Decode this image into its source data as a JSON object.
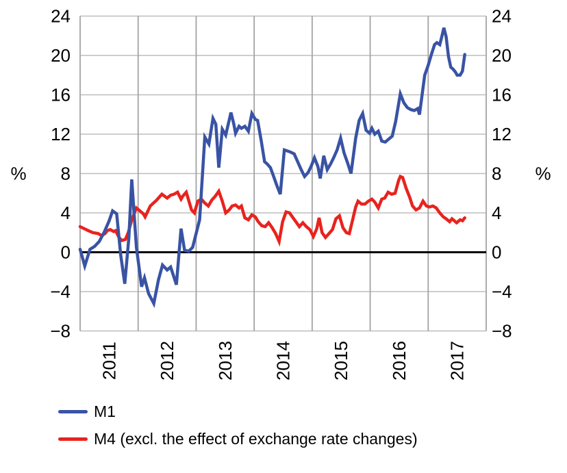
{
  "page": {
    "background": "#ffffff"
  },
  "chart_data": {
    "type": "line",
    "title": "",
    "grid": true,
    "grid_color_vertical": "#a3a3a3",
    "grid_color_horizontal": "#bdbdbd",
    "zero_line_color": "#000000",
    "y_axis": {
      "unit_left": "%",
      "unit_right": "%",
      "ticks": [
        24,
        20,
        16,
        12,
        8,
        4,
        0,
        -4,
        -8
      ],
      "range": [
        -8,
        24
      ]
    },
    "x_axis": {
      "range": [
        2011,
        2018
      ],
      "gridline_years": [
        2011,
        2012,
        2013,
        2014,
        2015,
        2016,
        2017,
        2018
      ],
      "labels": [
        "2011",
        "2012",
        "2013",
        "2014",
        "2015",
        "2016",
        "2017"
      ],
      "label_centers": [
        2011.5,
        2012.5,
        2013.5,
        2014.5,
        2015.5,
        2016.5,
        2017.5
      ],
      "label_rotation_deg": -90
    },
    "legend_position": "bottom-left",
    "series": [
      {
        "name": "M1",
        "color": "#3953a4",
        "points": [
          [
            2011.0,
            0.3
          ],
          [
            2011.08,
            -1.4
          ],
          [
            2011.17,
            0.3
          ],
          [
            2011.25,
            0.6
          ],
          [
            2011.33,
            1.1
          ],
          [
            2011.42,
            2.1
          ],
          [
            2011.5,
            3.2
          ],
          [
            2011.56,
            4.2
          ],
          [
            2011.63,
            3.9
          ],
          [
            2011.7,
            -0.3
          ],
          [
            2011.77,
            -3.2
          ],
          [
            2011.84,
            1.5
          ],
          [
            2011.89,
            7.4
          ],
          [
            2011.97,
            0.5
          ],
          [
            2012.06,
            -3.5
          ],
          [
            2012.11,
            -2.6
          ],
          [
            2012.18,
            -4.2
          ],
          [
            2012.27,
            -5.2
          ],
          [
            2012.35,
            -2.8
          ],
          [
            2012.42,
            -1.3
          ],
          [
            2012.5,
            -1.8
          ],
          [
            2012.56,
            -1.5
          ],
          [
            2012.66,
            -3.3
          ],
          [
            2012.74,
            2.4
          ],
          [
            2012.8,
            0.2
          ],
          [
            2012.87,
            0.1
          ],
          [
            2012.94,
            0.5
          ],
          [
            2013.06,
            3.3
          ],
          [
            2013.15,
            11.7
          ],
          [
            2013.22,
            11.0
          ],
          [
            2013.29,
            13.6
          ],
          [
            2013.34,
            13.0
          ],
          [
            2013.39,
            8.6
          ],
          [
            2013.45,
            12.5
          ],
          [
            2013.51,
            11.9
          ],
          [
            2013.6,
            14.2
          ],
          [
            2013.65,
            13.0
          ],
          [
            2013.68,
            12.1
          ],
          [
            2013.74,
            12.8
          ],
          [
            2013.78,
            12.6
          ],
          [
            2013.84,
            12.8
          ],
          [
            2013.9,
            12.3
          ],
          [
            2013.96,
            14.1
          ],
          [
            2014.02,
            13.5
          ],
          [
            2014.06,
            13.4
          ],
          [
            2014.12,
            11.4
          ],
          [
            2014.18,
            9.2
          ],
          [
            2014.22,
            9.0
          ],
          [
            2014.28,
            8.6
          ],
          [
            2014.33,
            7.8
          ],
          [
            2014.39,
            6.8
          ],
          [
            2014.45,
            5.9
          ],
          [
            2014.52,
            10.4
          ],
          [
            2014.62,
            10.2
          ],
          [
            2014.69,
            10.0
          ],
          [
            2014.81,
            8.4
          ],
          [
            2014.87,
            7.7
          ],
          [
            2014.93,
            8.1
          ],
          [
            2014.98,
            8.7
          ],
          [
            2015.04,
            9.6
          ],
          [
            2015.1,
            8.7
          ],
          [
            2015.14,
            7.5
          ],
          [
            2015.2,
            9.8
          ],
          [
            2015.26,
            8.4
          ],
          [
            2015.32,
            9.0
          ],
          [
            2015.37,
            9.6
          ],
          [
            2015.43,
            10.4
          ],
          [
            2015.49,
            11.6
          ],
          [
            2015.55,
            10.1
          ],
          [
            2015.61,
            9.1
          ],
          [
            2015.67,
            8.0
          ],
          [
            2015.75,
            11.6
          ],
          [
            2015.81,
            13.4
          ],
          [
            2015.87,
            14.1
          ],
          [
            2015.93,
            12.4
          ],
          [
            2015.99,
            12.1
          ],
          [
            2016.03,
            12.6
          ],
          [
            2016.08,
            12.0
          ],
          [
            2016.14,
            12.3
          ],
          [
            2016.2,
            11.3
          ],
          [
            2016.26,
            11.2
          ],
          [
            2016.32,
            11.5
          ],
          [
            2016.38,
            11.8
          ],
          [
            2016.44,
            13.3
          ],
          [
            2016.52,
            16.1
          ],
          [
            2016.58,
            15.2
          ],
          [
            2016.64,
            14.7
          ],
          [
            2016.7,
            14.5
          ],
          [
            2016.76,
            14.4
          ],
          [
            2016.82,
            14.6
          ],
          [
            2016.85,
            14.0
          ],
          [
            2016.94,
            18.0
          ],
          [
            2017.0,
            19.0
          ],
          [
            2017.05,
            20.0
          ],
          [
            2017.11,
            21.1
          ],
          [
            2017.15,
            21.3
          ],
          [
            2017.2,
            21.1
          ],
          [
            2017.23,
            21.8
          ],
          [
            2017.27,
            22.8
          ],
          [
            2017.31,
            21.9
          ],
          [
            2017.35,
            19.9
          ],
          [
            2017.39,
            18.8
          ],
          [
            2017.43,
            18.6
          ],
          [
            2017.47,
            18.3
          ],
          [
            2017.5,
            18.0
          ],
          [
            2017.55,
            18.0
          ],
          [
            2017.59,
            18.4
          ],
          [
            2017.63,
            20.1
          ]
        ]
      },
      {
        "name": "M4 (excl. the effect of exchange rate changes)",
        "color": "#e8231e",
        "points": [
          [
            2011.0,
            2.6
          ],
          [
            2011.07,
            2.4
          ],
          [
            2011.14,
            2.2
          ],
          [
            2011.22,
            2.0
          ],
          [
            2011.31,
            1.9
          ],
          [
            2011.37,
            1.7
          ],
          [
            2011.43,
            1.9
          ],
          [
            2011.47,
            2.2
          ],
          [
            2011.52,
            2.3
          ],
          [
            2011.58,
            2.1
          ],
          [
            2011.61,
            2.2
          ],
          [
            2011.67,
            1.5
          ],
          [
            2011.72,
            1.2
          ],
          [
            2011.78,
            1.3
          ],
          [
            2011.83,
            2.0
          ],
          [
            2011.89,
            3.3
          ],
          [
            2011.95,
            4.2
          ],
          [
            2011.97,
            4.5
          ],
          [
            2012.03,
            4.2
          ],
          [
            2012.09,
            3.9
          ],
          [
            2012.12,
            3.6
          ],
          [
            2012.21,
            4.7
          ],
          [
            2012.32,
            5.3
          ],
          [
            2012.41,
            5.9
          ],
          [
            2012.5,
            5.5
          ],
          [
            2012.56,
            5.8
          ],
          [
            2012.62,
            5.9
          ],
          [
            2012.68,
            6.1
          ],
          [
            2012.74,
            5.4
          ],
          [
            2012.77,
            5.7
          ],
          [
            2012.83,
            6.1
          ],
          [
            2012.92,
            4.3
          ],
          [
            2012.97,
            4.0
          ],
          [
            2013.03,
            5.2
          ],
          [
            2013.09,
            5.4
          ],
          [
            2013.15,
            5.0
          ],
          [
            2013.21,
            4.7
          ],
          [
            2013.27,
            5.3
          ],
          [
            2013.33,
            5.7
          ],
          [
            2013.39,
            6.2
          ],
          [
            2013.45,
            5.2
          ],
          [
            2013.51,
            4.0
          ],
          [
            2013.57,
            4.3
          ],
          [
            2013.62,
            4.7
          ],
          [
            2013.68,
            4.8
          ],
          [
            2013.74,
            4.5
          ],
          [
            2013.78,
            4.7
          ],
          [
            2013.84,
            3.5
          ],
          [
            2013.9,
            3.3
          ],
          [
            2013.96,
            3.8
          ],
          [
            2014.02,
            3.6
          ],
          [
            2014.07,
            3.1
          ],
          [
            2014.13,
            2.7
          ],
          [
            2014.19,
            2.6
          ],
          [
            2014.25,
            3.0
          ],
          [
            2014.31,
            2.5
          ],
          [
            2014.37,
            1.9
          ],
          [
            2014.43,
            1.1
          ],
          [
            2014.49,
            3.1
          ],
          [
            2014.55,
            4.1
          ],
          [
            2014.61,
            4.0
          ],
          [
            2014.67,
            3.5
          ],
          [
            2014.72,
            3.1
          ],
          [
            2014.78,
            2.6
          ],
          [
            2014.84,
            3.0
          ],
          [
            2014.9,
            2.6
          ],
          [
            2014.96,
            2.3
          ],
          [
            2015.02,
            1.6
          ],
          [
            2015.08,
            2.4
          ],
          [
            2015.12,
            3.5
          ],
          [
            2015.17,
            2.0
          ],
          [
            2015.23,
            1.5
          ],
          [
            2015.29,
            1.9
          ],
          [
            2015.35,
            2.3
          ],
          [
            2015.41,
            3.4
          ],
          [
            2015.47,
            3.7
          ],
          [
            2015.53,
            2.5
          ],
          [
            2015.59,
            2.0
          ],
          [
            2015.64,
            1.9
          ],
          [
            2015.69,
            3.1
          ],
          [
            2015.75,
            4.6
          ],
          [
            2015.79,
            5.2
          ],
          [
            2015.85,
            4.9
          ],
          [
            2015.91,
            4.9
          ],
          [
            2015.97,
            5.2
          ],
          [
            2016.03,
            5.4
          ],
          [
            2016.08,
            5.1
          ],
          [
            2016.14,
            4.5
          ],
          [
            2016.2,
            5.4
          ],
          [
            2016.25,
            5.5
          ],
          [
            2016.31,
            6.1
          ],
          [
            2016.37,
            5.9
          ],
          [
            2016.43,
            6.0
          ],
          [
            2016.49,
            7.3
          ],
          [
            2016.52,
            7.7
          ],
          [
            2016.56,
            7.6
          ],
          [
            2016.62,
            6.5
          ],
          [
            2016.68,
            5.6
          ],
          [
            2016.73,
            4.7
          ],
          [
            2016.79,
            4.3
          ],
          [
            2016.85,
            4.5
          ],
          [
            2016.91,
            5.2
          ],
          [
            2016.97,
            4.7
          ],
          [
            2017.02,
            4.6
          ],
          [
            2017.08,
            4.7
          ],
          [
            2017.14,
            4.5
          ],
          [
            2017.2,
            4.0
          ],
          [
            2017.26,
            3.6
          ],
          [
            2017.31,
            3.4
          ],
          [
            2017.37,
            3.1
          ],
          [
            2017.41,
            3.4
          ],
          [
            2017.45,
            3.2
          ],
          [
            2017.49,
            3.0
          ],
          [
            2017.55,
            3.3
          ],
          [
            2017.59,
            3.2
          ],
          [
            2017.63,
            3.5
          ]
        ]
      }
    ]
  },
  "legend": {
    "items": [
      {
        "label": "M1",
        "color": "#3953a4"
      },
      {
        "label": "M4 (excl. the effect of exchange rate changes)",
        "color": "#e8231e"
      }
    ]
  }
}
